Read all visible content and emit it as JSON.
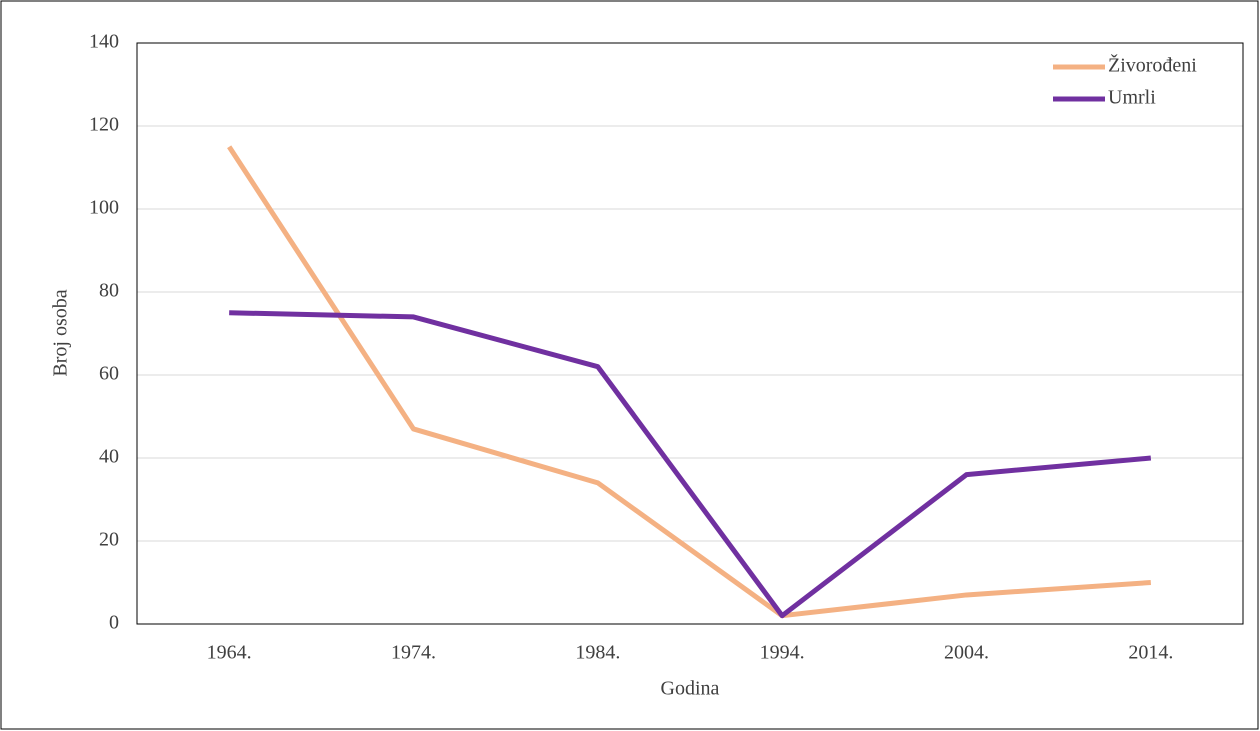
{
  "chart_data": {
    "type": "line",
    "categories": [
      "1964.",
      "1974.",
      "1984.",
      "1994.",
      "2004.",
      "2014."
    ],
    "series": [
      {
        "name": "Živorođeni",
        "color": "#f4b183",
        "values": [
          115,
          47,
          34,
          2,
          7,
          10
        ]
      },
      {
        "name": "Umrli",
        "color": "#7030a0",
        "values": [
          75,
          74,
          62,
          2,
          36,
          40
        ]
      }
    ],
    "ylim": [
      0,
      140
    ],
    "yticks": [
      0,
      20,
      40,
      60,
      80,
      100,
      120,
      140
    ],
    "xlabel": "Godina",
    "ylabel": "Broj osoba",
    "grid": true,
    "legend": "top-right"
  }
}
